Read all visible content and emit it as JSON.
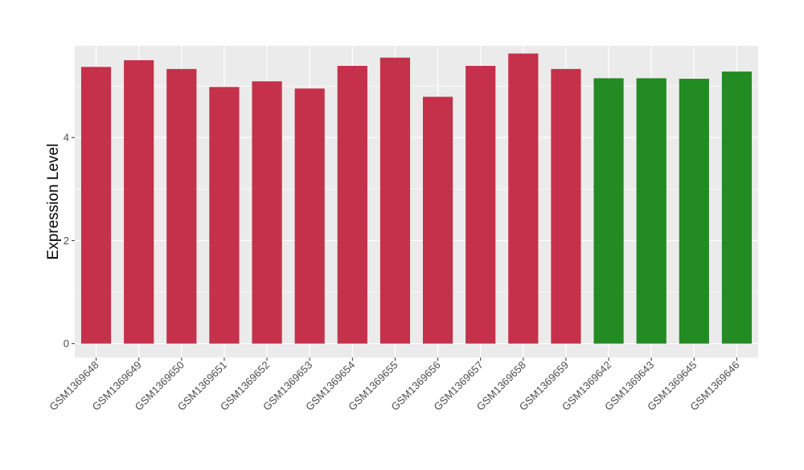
{
  "chart_data": {
    "type": "bar",
    "ylabel": "Expression Level",
    "ylim": [
      -0.27,
      5.78
    ],
    "yticks": [
      0,
      2,
      4
    ],
    "grid": true,
    "legend": "none",
    "categories": [
      "GSM1369648",
      "GSM1369649",
      "GSM1369650",
      "GSM1369651",
      "GSM1369652",
      "GSM1369653",
      "GSM1369654",
      "GSM1369655",
      "GSM1369656",
      "GSM1369657",
      "GSM1369658",
      "GSM1369659",
      "GSM1369642",
      "GSM1369643",
      "GSM1369645",
      "GSM1369646"
    ],
    "values": [
      5.37,
      5.5,
      5.33,
      4.98,
      5.09,
      4.95,
      5.39,
      5.55,
      4.79,
      5.39,
      5.63,
      5.33,
      5.15,
      5.15,
      5.14,
      5.28
    ],
    "bar_colors": [
      "#C5304A",
      "#C5304A",
      "#C5304A",
      "#C5304A",
      "#C5304A",
      "#C5304A",
      "#C5304A",
      "#C5304A",
      "#C5304A",
      "#C5304A",
      "#C5304A",
      "#C5304A",
      "#228B22",
      "#228B22",
      "#228B22",
      "#228B22"
    ],
    "colors": {
      "panel_bg": "#EBEBEB",
      "grid_major": "#FFFFFF",
      "axis_text": "#4D4D4D"
    }
  }
}
